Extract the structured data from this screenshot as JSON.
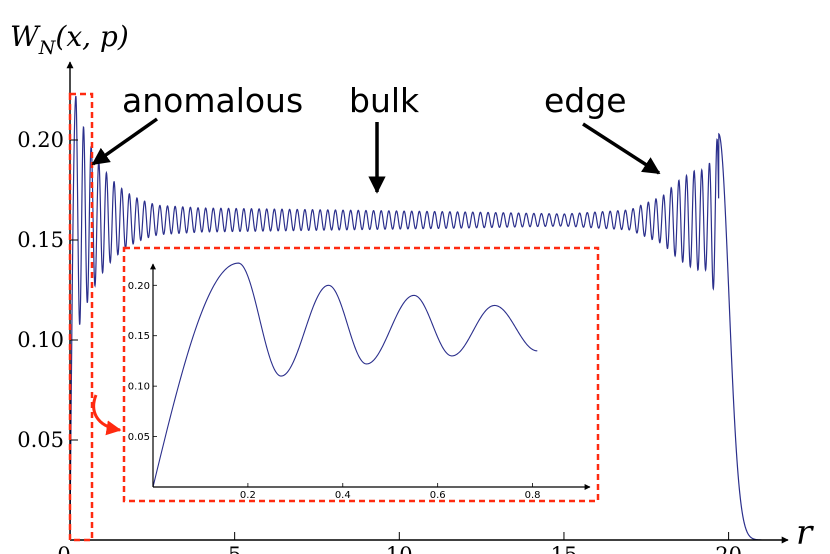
{
  "chart_data": [
    {
      "type": "line",
      "title": "",
      "ylabel": "W_N(x, p)",
      "xlabel": "r",
      "xlim": [
        0,
        21.5
      ],
      "ylim": [
        0,
        0.25
      ],
      "xticks": [
        0,
        5,
        10,
        15,
        20
      ],
      "xtick_labels": [
        "0",
        "5",
        "10",
        "15",
        "20"
      ],
      "yticks": [
        0.05,
        0.1,
        0.15,
        0.2
      ],
      "ytick_labels": [
        "0.05",
        "0.10",
        "0.15",
        "0.20"
      ],
      "grid": false,
      "series": [
        {
          "color": "#2b2f8c",
          "mean": 0.16,
          "oscillation_count": 85,
          "edge_r": 19.7,
          "x": [
            0.0,
            0.18,
            0.5,
            1.0,
            2.0,
            4.0,
            8.0,
            12.0,
            15.0,
            17.0,
            18.0,
            18.5,
            19.0,
            19.35,
            19.7,
            20.1,
            20.5,
            21.0
          ],
          "y": [
            0.0,
            0.222,
            0.18,
            0.175,
            0.168,
            0.166,
            0.165,
            0.164,
            0.163,
            0.165,
            0.172,
            0.18,
            0.185,
            0.185,
            0.203,
            0.1,
            0.01,
            0.0
          ]
        }
      ],
      "annotations": [
        {
          "label": "anomalous",
          "target_x": 0.7,
          "target_y": 0.188
        },
        {
          "label": "bulk",
          "target_x": 9.6,
          "target_y": 0.172
        },
        {
          "label": "edge",
          "target_x": 18.3,
          "target_y": 0.178
        }
      ],
      "highlight_region": {
        "x": [
          0,
          0.8
        ],
        "style": "red-dashed"
      }
    },
    {
      "type": "line",
      "title": "",
      "xlim": [
        0,
        0.9
      ],
      "ylim": [
        0,
        0.235
      ],
      "xticks": [
        0.2,
        0.4,
        0.6,
        0.8
      ],
      "xtick_labels": [
        "0.2",
        "0.4",
        "0.6",
        "0.8"
      ],
      "yticks": [
        0.05,
        0.1,
        0.15,
        0.2
      ],
      "ytick_labels": [
        "0.05",
        "0.10",
        "0.15",
        "0.20"
      ],
      "series": [
        {
          "color": "#2b2f8c",
          "x": [
            0.0,
            0.05,
            0.1,
            0.18,
            0.27,
            0.37,
            0.45,
            0.55,
            0.63,
            0.72,
            0.8
          ],
          "y": [
            0.0,
            0.12,
            0.2,
            0.222,
            0.11,
            0.2,
            0.12,
            0.19,
            0.13,
            0.18,
            0.13
          ],
          "maxima": [
            [
              0.18,
              0.222
            ],
            [
              0.37,
              0.2
            ],
            [
              0.55,
              0.19
            ],
            [
              0.72,
              0.18
            ]
          ],
          "minima": [
            [
              0.27,
              0.11
            ],
            [
              0.45,
              0.122
            ],
            [
              0.63,
              0.13
            ],
            [
              0.81,
              0.135
            ]
          ]
        }
      ],
      "border": "red-dashed"
    }
  ]
}
